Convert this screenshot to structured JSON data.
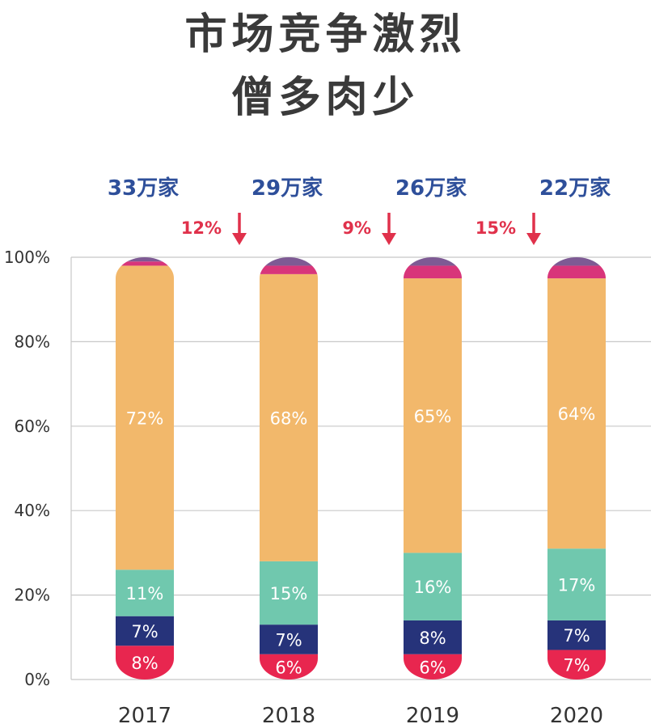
{
  "title": {
    "line1": "市场竞争激烈",
    "line2": "僧多肉少"
  },
  "colors": {
    "text_title": "#3a3a3a",
    "count_blue": "#2e4f9a",
    "change_red": "#e0314b",
    "grid": "#c8c8c8"
  },
  "chart_data": {
    "type": "bar",
    "stacked": true,
    "categories": [
      "2017",
      "2018",
      "2019",
      "2020"
    ],
    "ylim": [
      0,
      100
    ],
    "yticks": [
      "0%",
      "20%",
      "40%",
      "60%",
      "80%",
      "100%"
    ],
    "grid": true,
    "series": [
      {
        "color": "#e8264f",
        "values": [
          8,
          6,
          6,
          7
        ],
        "labels": [
          "8%",
          "6%",
          "6%",
          "7%"
        ]
      },
      {
        "color": "#26337a",
        "values": [
          7,
          7,
          8,
          7
        ],
        "labels": [
          "7%",
          "7%",
          "8%",
          "7%"
        ]
      },
      {
        "color": "#70c8ae",
        "values": [
          11,
          15,
          16,
          17
        ],
        "labels": [
          "11%",
          "15%",
          "16%",
          "17%"
        ]
      },
      {
        "color": "#f2b86b",
        "values": [
          72,
          68,
          65,
          64
        ],
        "labels": [
          "72%",
          "68%",
          "65%",
          "64%"
        ]
      },
      {
        "color": "#d8357a",
        "values": [
          1,
          2,
          3,
          3
        ],
        "labels": [
          "",
          "",
          "",
          ""
        ]
      },
      {
        "color": "#7e5a94",
        "values": [
          1,
          2,
          2,
          2
        ],
        "labels": [
          "",
          "",
          "",
          ""
        ]
      }
    ],
    "totals": [
      "33万家",
      "29万家",
      "26万家",
      "22万家"
    ],
    "changes": [
      "12%",
      "9%",
      "15%"
    ]
  }
}
